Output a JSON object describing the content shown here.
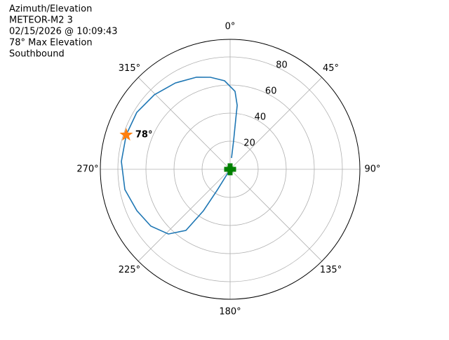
{
  "chart_data": {
    "type": "polar",
    "title_lines": [
      "Azimuth/Elevation",
      "METEOR-M2 3",
      "02/15/2026 @ 10:09:43",
      "78° Max Elevation",
      "Southbound"
    ],
    "theta_direction": "clockwise",
    "theta_zero": "N",
    "rlim": [
      0,
      92.5
    ],
    "rticks": [
      20,
      40,
      60,
      80
    ],
    "thetaticks": [
      {
        "value": 0,
        "label": "0°"
      },
      {
        "value": 45,
        "label": "45°"
      },
      {
        "value": 90,
        "label": "90°"
      },
      {
        "value": 135,
        "label": "135°"
      },
      {
        "value": 180,
        "label": "180°"
      },
      {
        "value": 225,
        "label": "225°"
      },
      {
        "value": 270,
        "label": "270°"
      },
      {
        "value": 315,
        "label": "315°"
      }
    ],
    "grid": true,
    "series": [
      {
        "color": "#1f77b4",
        "theta": [
          7.1,
          7.0,
          6.4,
          6.3,
          3.6,
          356.4,
          347.9,
          339.9,
          327.6,
          314.5,
          301.3,
          288.3,
          274.1,
          259.1,
          246.1,
          234.4,
          223.7,
          215.9,
          212.8,
          211.8,
          211.8
        ],
        "r": [
          8.1,
          20.6,
          35.7,
          45.8,
          55.6,
          63.1,
          67.0,
          69.8,
          72.8,
          75.7,
          77.9,
          78,
          77.7,
          76.4,
          72.7,
          69.5,
          63.7,
          53.7,
          35.1,
          17.1,
          0
        ]
      }
    ],
    "start_marker": {
      "r": 0,
      "color": "#008000"
    },
    "max_marker": {
      "theta": 288.3,
      "r": 78,
      "value_label": "78°",
      "color": "#ff7f0e"
    }
  }
}
